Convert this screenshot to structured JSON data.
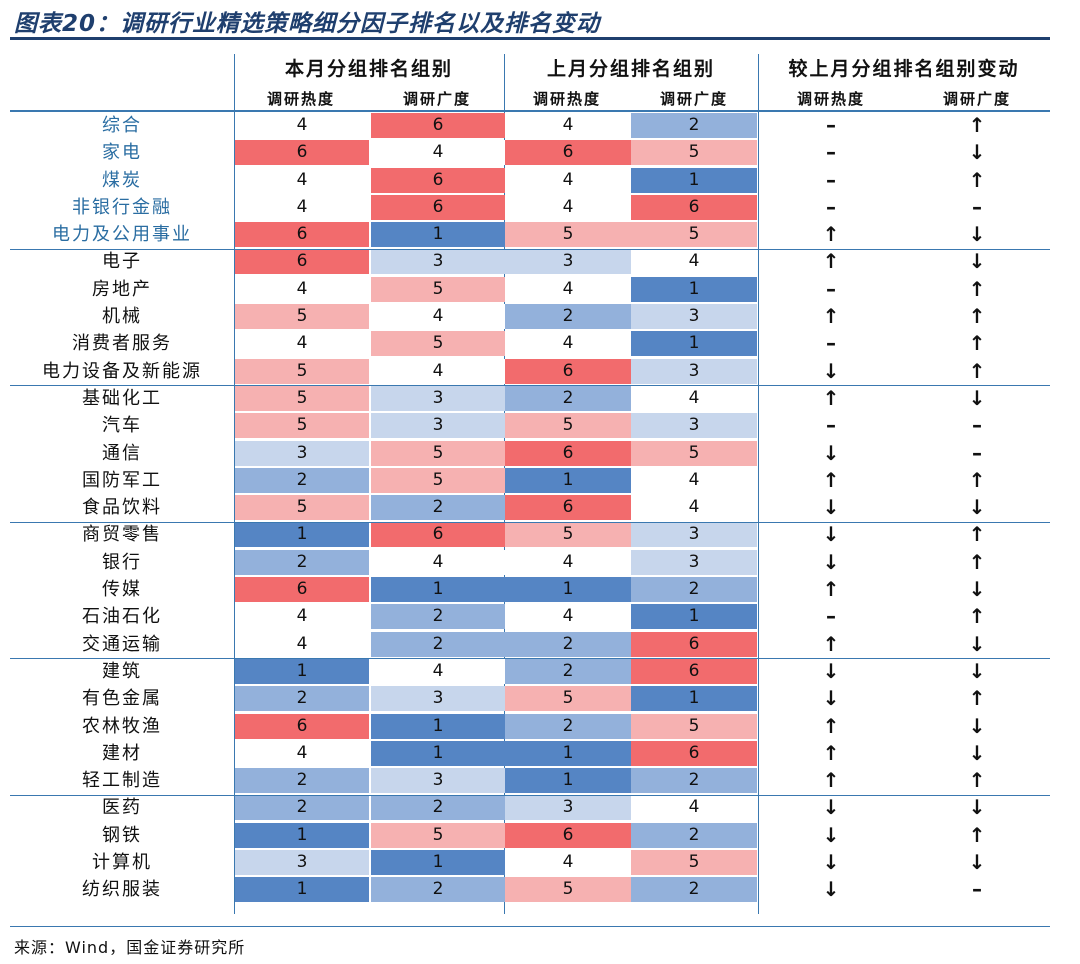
{
  "title": "图表20：调研行业精选策略细分因子排名以及排名变动",
  "headers": {
    "group1": "本月分组排名组别",
    "group2": "上月分组排名组别",
    "group3": "较上月分组排名组别变动",
    "sub_heat": "调研热度",
    "sub_width": "调研广度"
  },
  "colors": {
    "1": "#5585c4",
    "2": "#93b1db",
    "3": "#c7d6ec",
    "4": "#ffffff",
    "5": "#f6b1b1",
    "6": "#f26b6d"
  },
  "symbols": {
    "up": "↑",
    "down": "↓",
    "same": "–"
  },
  "rows": [
    {
      "name": "综合",
      "hl": true,
      "cur": [
        4,
        6
      ],
      "prev": [
        4,
        2
      ],
      "chg": [
        "same",
        "up"
      ]
    },
    {
      "name": "家电",
      "hl": true,
      "cur": [
        6,
        4
      ],
      "prev": [
        6,
        5
      ],
      "chg": [
        "same",
        "down"
      ]
    },
    {
      "name": "煤炭",
      "hl": true,
      "cur": [
        4,
        6
      ],
      "prev": [
        4,
        1
      ],
      "chg": [
        "same",
        "up"
      ]
    },
    {
      "name": "非银行金融",
      "hl": true,
      "cur": [
        4,
        6
      ],
      "prev": [
        4,
        6
      ],
      "chg": [
        "same",
        "same"
      ]
    },
    {
      "name": "电力及公用事业",
      "hl": true,
      "cur": [
        6,
        1
      ],
      "prev": [
        5,
        5
      ],
      "chg": [
        "up",
        "down"
      ]
    },
    {
      "name": "电子",
      "cur": [
        6,
        3
      ],
      "prev": [
        3,
        4
      ],
      "chg": [
        "up",
        "down"
      ]
    },
    {
      "name": "房地产",
      "cur": [
        4,
        5
      ],
      "prev": [
        4,
        1
      ],
      "chg": [
        "same",
        "up"
      ]
    },
    {
      "name": "机械",
      "cur": [
        5,
        4
      ],
      "prev": [
        2,
        3
      ],
      "chg": [
        "up",
        "up"
      ]
    },
    {
      "name": "消费者服务",
      "cur": [
        4,
        5
      ],
      "prev": [
        4,
        1
      ],
      "chg": [
        "same",
        "up"
      ]
    },
    {
      "name": "电力设备及新能源",
      "cur": [
        5,
        4
      ],
      "prev": [
        6,
        3
      ],
      "chg": [
        "down",
        "up"
      ]
    },
    {
      "name": "基础化工",
      "cur": [
        5,
        3
      ],
      "prev": [
        2,
        4
      ],
      "chg": [
        "up",
        "down"
      ]
    },
    {
      "name": "汽车",
      "cur": [
        5,
        3
      ],
      "prev": [
        5,
        3
      ],
      "chg": [
        "same",
        "same"
      ]
    },
    {
      "name": "通信",
      "cur": [
        3,
        5
      ],
      "prev": [
        6,
        5
      ],
      "chg": [
        "down",
        "same"
      ]
    },
    {
      "name": "国防军工",
      "cur": [
        2,
        5
      ],
      "prev": [
        1,
        4
      ],
      "chg": [
        "up",
        "up"
      ]
    },
    {
      "name": "食品饮料",
      "cur": [
        5,
        2
      ],
      "prev": [
        6,
        4
      ],
      "chg": [
        "down",
        "down"
      ]
    },
    {
      "name": "商贸零售",
      "cur": [
        1,
        6
      ],
      "prev": [
        5,
        3
      ],
      "chg": [
        "down",
        "up"
      ]
    },
    {
      "name": "银行",
      "cur": [
        2,
        4
      ],
      "prev": [
        4,
        3
      ],
      "chg": [
        "down",
        "up"
      ]
    },
    {
      "name": "传媒",
      "cur": [
        6,
        1
      ],
      "prev": [
        1,
        2
      ],
      "chg": [
        "up",
        "down"
      ]
    },
    {
      "name": "石油石化",
      "cur": [
        4,
        2
      ],
      "prev": [
        4,
        1
      ],
      "chg": [
        "same",
        "up"
      ]
    },
    {
      "name": "交通运输",
      "cur": [
        4,
        2
      ],
      "prev": [
        2,
        6
      ],
      "chg": [
        "up",
        "down"
      ]
    },
    {
      "name": "建筑",
      "cur": [
        1,
        4
      ],
      "prev": [
        2,
        6
      ],
      "chg": [
        "down",
        "down"
      ]
    },
    {
      "name": "有色金属",
      "cur": [
        2,
        3
      ],
      "prev": [
        5,
        1
      ],
      "chg": [
        "down",
        "up"
      ]
    },
    {
      "name": "农林牧渔",
      "cur": [
        6,
        1
      ],
      "prev": [
        2,
        5
      ],
      "chg": [
        "up",
        "down"
      ]
    },
    {
      "name": "建材",
      "cur": [
        4,
        1
      ],
      "prev": [
        1,
        6
      ],
      "chg": [
        "up",
        "down"
      ]
    },
    {
      "name": "轻工制造",
      "cur": [
        2,
        3
      ],
      "prev": [
        1,
        2
      ],
      "chg": [
        "up",
        "up"
      ]
    },
    {
      "name": "医药",
      "cur": [
        2,
        2
      ],
      "prev": [
        3,
        4
      ],
      "chg": [
        "down",
        "down"
      ]
    },
    {
      "name": "钢铁",
      "cur": [
        1,
        5
      ],
      "prev": [
        6,
        2
      ],
      "chg": [
        "down",
        "up"
      ]
    },
    {
      "name": "计算机",
      "cur": [
        3,
        1
      ],
      "prev": [
        4,
        5
      ],
      "chg": [
        "down",
        "down"
      ]
    },
    {
      "name": "纺织服装",
      "cur": [
        1,
        2
      ],
      "prev": [
        5,
        2
      ],
      "chg": [
        "down",
        "same"
      ]
    }
  ],
  "source": "来源：Wind，国金证券研究所"
}
